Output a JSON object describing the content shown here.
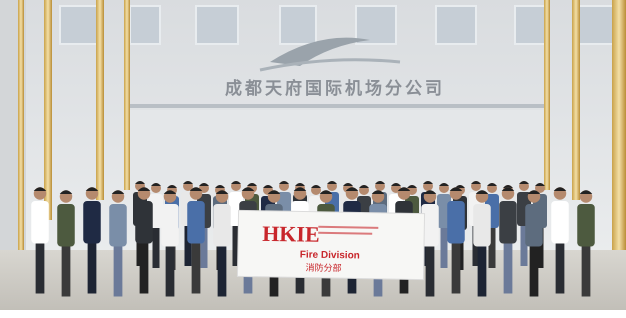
{
  "sign": {
    "text": "成都天府国际机场分公司"
  },
  "banner": {
    "logo": "HKIE",
    "division": "Fire Division",
    "division_chinese": "消防分部"
  }
}
